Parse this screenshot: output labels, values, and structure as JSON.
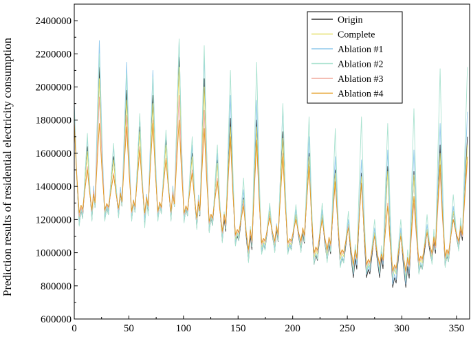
{
  "chart_data": {
    "type": "line",
    "title": "",
    "xlabel": "",
    "ylabel": "Prediction results of residential electricity consumption",
    "xlim": [
      0,
      362
    ],
    "ylim": [
      600000,
      2500000
    ],
    "xticks": [
      0,
      50,
      100,
      150,
      200,
      250,
      300,
      350
    ],
    "xtick_labels": [
      "0",
      "50",
      "100",
      "150",
      "200",
      "250",
      "300",
      "350"
    ],
    "yticks": [
      600000,
      800000,
      1000000,
      1200000,
      1400000,
      1600000,
      1800000,
      2000000,
      2200000,
      2400000
    ],
    "ytick_labels": [
      "600000",
      "800000",
      "1000000",
      "1200000",
      "1400000",
      "1600000",
      "1800000",
      "2000000",
      "2200000",
      "2400000"
    ],
    "grid": false,
    "legend_position": "top-right",
    "peak_x": [
      0,
      12,
      23,
      36,
      48,
      60,
      72,
      84,
      96,
      108,
      119,
      131,
      143,
      155,
      167,
      179,
      191,
      203,
      215,
      227,
      239,
      251,
      263,
      275,
      287,
      299,
      311,
      323,
      335,
      347,
      360
    ],
    "series": [
      {
        "name": "Origin",
        "color": "#333333",
        "peaks": [
          1850000,
          1640000,
          2120000,
          1580000,
          1980000,
          1760000,
          1950000,
          1680000,
          2180000,
          1600000,
          2050000,
          1560000,
          1810000,
          1330000,
          1800000,
          1250000,
          1730000,
          1230000,
          1600000,
          1230000,
          1500000,
          1170000,
          1480000,
          1120000,
          1520000,
          1120000,
          1490000,
          1130000,
          1650000,
          1250000,
          1700000
        ],
        "troughs": [
          1170000,
          1200000,
          1200000,
          1220000,
          1200000,
          1180000,
          1200000,
          1200000,
          1190000,
          1150000,
          1130000,
          1070000,
          1050000,
          950000,
          1000000,
          1010000,
          1000000,
          1010000,
          930000,
          950000,
          920000,
          850000,
          850000,
          850000,
          790000,
          790000,
          880000,
          940000,
          920000,
          1020000
        ]
      },
      {
        "name": "Complete",
        "color": "#e6df6a",
        "peaks": [
          1800000,
          1610000,
          2050000,
          1560000,
          1920000,
          1730000,
          1900000,
          1650000,
          2120000,
          1580000,
          2000000,
          1540000,
          1760000,
          1320000,
          1760000,
          1250000,
          1690000,
          1230000,
          1580000,
          1230000,
          1480000,
          1170000,
          1460000,
          1120000,
          1490000,
          1120000,
          1470000,
          1140000,
          1600000,
          1250000,
          1650000
        ],
        "troughs": [
          1200000,
          1230000,
          1230000,
          1240000,
          1220000,
          1210000,
          1220000,
          1220000,
          1210000,
          1180000,
          1160000,
          1100000,
          1080000,
          990000,
          1030000,
          1040000,
          1030000,
          1040000,
          970000,
          990000,
          960000,
          900000,
          900000,
          900000,
          850000,
          850000,
          920000,
          970000,
          950000,
          1050000
        ]
      },
      {
        "name": "Ablation #1",
        "color": "#8fc8ec",
        "peaks": [
          1900000,
          1700000,
          2280000,
          1640000,
          2150000,
          1820000,
          2100000,
          1720000,
          2280000,
          1650000,
          2200000,
          1600000,
          1950000,
          1380000,
          1920000,
          1280000,
          1880000,
          1260000,
          1700000,
          1260000,
          1580000,
          1200000,
          1560000,
          1150000,
          1620000,
          1150000,
          1620000,
          1170000,
          1780000,
          1280000,
          1850000
        ],
        "troughs": [
          1180000,
          1210000,
          1210000,
          1230000,
          1210000,
          1190000,
          1210000,
          1210000,
          1200000,
          1160000,
          1140000,
          1080000,
          1060000,
          960000,
          1010000,
          1020000,
          1010000,
          1020000,
          940000,
          960000,
          930000,
          870000,
          870000,
          870000,
          810000,
          810000,
          890000,
          950000,
          930000,
          1030000
        ]
      },
      {
        "name": "Ablation #2",
        "color": "#a9e2cf",
        "peaks": [
          1880000,
          1720000,
          2200000,
          1660000,
          2080000,
          1840000,
          2060000,
          1740000,
          2290000,
          1700000,
          2250000,
          1650000,
          2100000,
          1450000,
          2150000,
          1300000,
          1900000,
          1290000,
          1820000,
          1300000,
          1750000,
          1250000,
          1820000,
          1200000,
          1780000,
          1200000,
          1870000,
          1230000,
          2110000,
          1350000,
          2120000
        ],
        "troughs": [
          1160000,
          1190000,
          1190000,
          1210000,
          1190000,
          1150000,
          1190000,
          1190000,
          1180000,
          1140000,
          1120000,
          1060000,
          1040000,
          940000,
          990000,
          1000000,
          990000,
          1000000,
          930000,
          940000,
          910000,
          880000,
          880000,
          880000,
          850000,
          830000,
          870000,
          930000,
          910000,
          1010000
        ]
      },
      {
        "name": "Ablation #3",
        "color": "#f0a89c",
        "peaks": [
          1800000,
          1520000,
          1940000,
          1480000,
          1830000,
          1640000,
          1800000,
          1570000,
          1950000,
          1500000,
          1860000,
          1450000,
          1680000,
          1300000,
          1660000,
          1220000,
          1600000,
          1200000,
          1520000,
          1200000,
          1420000,
          1160000,
          1420000,
          1100000,
          1300000,
          1100000,
          1300000,
          1120000,
          1480000,
          1200000,
          1550000
        ],
        "troughs": [
          1220000,
          1250000,
          1250000,
          1260000,
          1240000,
          1230000,
          1240000,
          1240000,
          1230000,
          1200000,
          1180000,
          1120000,
          1100000,
          1010000,
          1050000,
          1060000,
          1050000,
          1060000,
          990000,
          1010000,
          980000,
          920000,
          920000,
          920000,
          880000,
          880000,
          940000,
          990000,
          970000,
          1060000
        ]
      },
      {
        "name": "Ablation #4",
        "color": "#e39a1e",
        "peaks": [
          1780000,
          1500000,
          1780000,
          1470000,
          1760000,
          1620000,
          1780000,
          1560000,
          1800000,
          1480000,
          1750000,
          1430000,
          1700000,
          1280000,
          1680000,
          1210000,
          1580000,
          1200000,
          1520000,
          1200000,
          1430000,
          1150000,
          1420000,
          1100000,
          1280000,
          1100000,
          1340000,
          1120000,
          1530000,
          1200000,
          1580000
        ],
        "troughs": [
          1240000,
          1260000,
          1260000,
          1270000,
          1250000,
          1240000,
          1250000,
          1250000,
          1240000,
          1210000,
          1190000,
          1130000,
          1110000,
          1020000,
          1060000,
          1070000,
          1060000,
          1070000,
          1000000,
          1020000,
          990000,
          930000,
          930000,
          930000,
          890000,
          890000,
          950000,
          1000000,
          980000,
          1070000
        ]
      }
    ]
  }
}
